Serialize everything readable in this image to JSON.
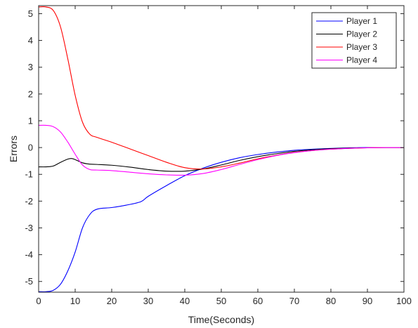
{
  "chart_data": {
    "type": "line",
    "title": "",
    "xlabel": "Time(Seconds)",
    "ylabel": "Errors",
    "xlim": [
      0,
      100
    ],
    "ylim": [
      -5.4,
      5.3
    ],
    "xticks": [
      0,
      10,
      20,
      30,
      40,
      50,
      60,
      70,
      80,
      90,
      100
    ],
    "yticks": [
      -5,
      -4,
      -3,
      -2,
      -1,
      0,
      1,
      2,
      3,
      4,
      5
    ],
    "grid": false,
    "legend_position": "top-right",
    "series": [
      {
        "name": "Player 1",
        "color": "#0000ff",
        "x": [
          0,
          2,
          4,
          6,
          8,
          10,
          12,
          14,
          16,
          20,
          24,
          28,
          30,
          35,
          40,
          45,
          50,
          55,
          60,
          65,
          70,
          75,
          80,
          85,
          90,
          95,
          100
        ],
        "y": [
          -5.38,
          -5.38,
          -5.33,
          -5.1,
          -4.6,
          -3.9,
          -3.0,
          -2.5,
          -2.3,
          -2.24,
          -2.15,
          -2.02,
          -1.82,
          -1.42,
          -1.05,
          -0.77,
          -0.55,
          -0.38,
          -0.26,
          -0.17,
          -0.1,
          -0.06,
          -0.03,
          -0.01,
          0.0,
          0.0,
          0.0
        ]
      },
      {
        "name": "Player 2",
        "color": "#000000",
        "x": [
          0,
          2,
          4,
          6,
          8,
          9,
          10,
          12,
          14,
          16,
          20,
          25,
          30,
          35,
          40,
          45,
          50,
          55,
          60,
          65,
          70,
          75,
          80,
          85,
          90,
          95,
          100
        ],
        "y": [
          -0.72,
          -0.72,
          -0.69,
          -0.55,
          -0.43,
          -0.41,
          -0.45,
          -0.57,
          -0.62,
          -0.63,
          -0.66,
          -0.73,
          -0.82,
          -0.88,
          -0.88,
          -0.8,
          -0.65,
          -0.48,
          -0.34,
          -0.23,
          -0.14,
          -0.08,
          -0.04,
          -0.02,
          -0.01,
          0.0,
          0.0
        ]
      },
      {
        "name": "Player 3",
        "color": "#ff0000",
        "x": [
          0,
          2,
          4,
          6,
          8,
          10,
          12,
          14,
          16,
          20,
          25,
          30,
          35,
          40,
          45,
          50,
          55,
          60,
          65,
          70,
          75,
          80,
          85,
          90,
          95,
          100
        ],
        "y": [
          5.25,
          5.25,
          5.12,
          4.5,
          3.3,
          1.95,
          0.95,
          0.5,
          0.38,
          0.2,
          -0.05,
          -0.3,
          -0.55,
          -0.75,
          -0.8,
          -0.72,
          -0.58,
          -0.42,
          -0.29,
          -0.18,
          -0.11,
          -0.06,
          -0.03,
          -0.01,
          0.0,
          0.0
        ]
      },
      {
        "name": "Player 4",
        "color": "#ff00ff",
        "x": [
          0,
          2,
          4,
          6,
          8,
          10,
          12,
          14,
          16,
          20,
          25,
          30,
          35,
          40,
          45,
          50,
          55,
          60,
          65,
          70,
          75,
          80,
          85,
          90,
          95,
          100
        ],
        "y": [
          0.83,
          0.83,
          0.78,
          0.58,
          0.2,
          -0.25,
          -0.65,
          -0.82,
          -0.84,
          -0.86,
          -0.92,
          -0.98,
          -1.02,
          -1.03,
          -0.97,
          -0.82,
          -0.63,
          -0.45,
          -0.3,
          -0.19,
          -0.11,
          -0.06,
          -0.03,
          -0.01,
          0.0,
          0.0
        ]
      }
    ]
  }
}
